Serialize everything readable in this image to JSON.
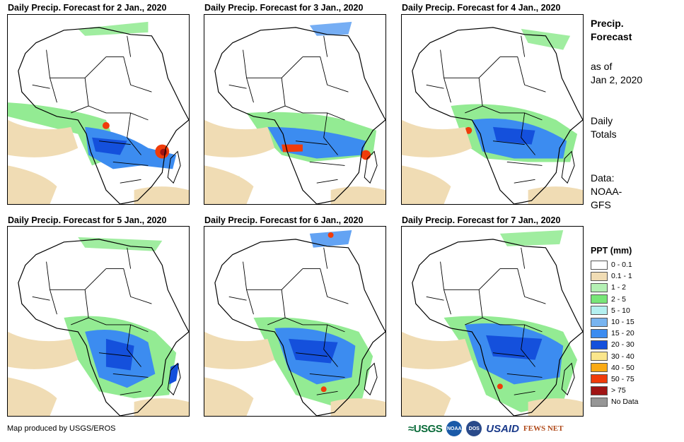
{
  "panels": [
    {
      "title": "Daily Precip. Forecast for 2 Jan., 2020"
    },
    {
      "title": "Daily Precip. Forecast for 3 Jan., 2020"
    },
    {
      "title": "Daily Precip. Forecast for 4 Jan., 2020"
    },
    {
      "title": "Daily Precip. Forecast for 5 Jan., 2020"
    },
    {
      "title": "Daily Precip. Forecast for 6 Jan., 2020"
    },
    {
      "title": "Daily Precip. Forecast for 7 Jan., 2020"
    }
  ],
  "sidebar": {
    "title_line1": "Precip.",
    "title_line2": "Forecast",
    "asof_line1": "as of",
    "asof_line2": "Jan 2, 2020",
    "daily_line1": "Daily",
    "daily_line2": "Totals",
    "data_line1": "Data:",
    "data_line2": "NOAA-",
    "data_line3": "GFS"
  },
  "legend": {
    "title": "PPT (mm)",
    "items": [
      {
        "label": "0 - 0.1",
        "color": "#ffffff"
      },
      {
        "label": "0.1 - 1",
        "color": "#f0dcb4"
      },
      {
        "label": "1 - 2",
        "color": "#b4f0b4"
      },
      {
        "label": "2 - 5",
        "color": "#78e678"
      },
      {
        "label": "5 - 10",
        "color": "#b4f0f0"
      },
      {
        "label": "10 - 15",
        "color": "#78b4f0"
      },
      {
        "label": "15 - 20",
        "color": "#3c8cf0"
      },
      {
        "label": "20 - 30",
        "color": "#1450dc"
      },
      {
        "label": "30 - 40",
        "color": "#fae68c"
      },
      {
        "label": "40 - 50",
        "color": "#faaa14"
      },
      {
        "label": "50 - 75",
        "color": "#f03c0a"
      },
      {
        "label": "> 75",
        "color": "#a01414"
      },
      {
        "label": "No Data",
        "color": "#969696"
      }
    ]
  },
  "footer": {
    "credit": "Map produced by USGS/EROS",
    "logo_usgs": "≈USGS",
    "logo_noaa": "NOAA",
    "logo_dos": "DOS",
    "logo_usaid": "USAID",
    "logo_fews": "FEWS NET"
  }
}
